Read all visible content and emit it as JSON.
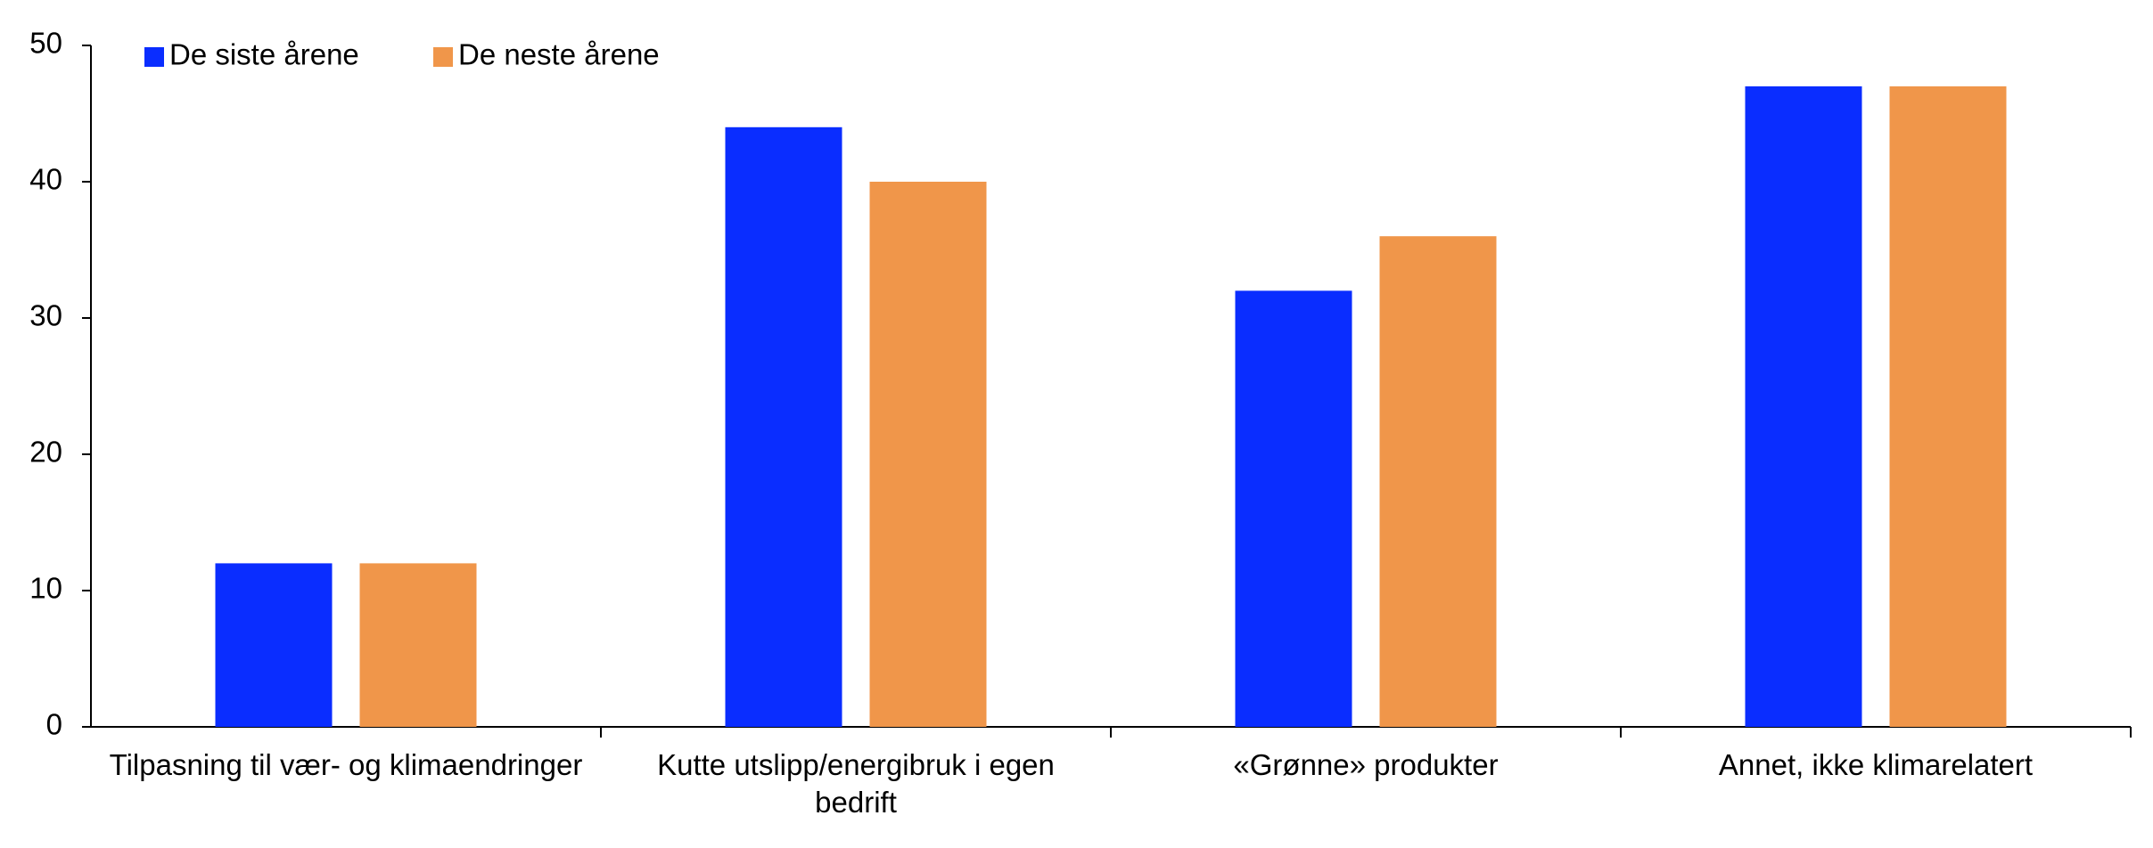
{
  "chart_data": {
    "type": "bar",
    "categories": [
      "Tilpasning til vær- og klimaendringer",
      "Kutte utslipp/energibruk i egen bedrift",
      "«Grønne» produkter",
      "Annet, ikke klimarelatert"
    ],
    "series": [
      {
        "name": "De siste årene",
        "color": "#0a2dff",
        "values": [
          12,
          44,
          32,
          47
        ]
      },
      {
        "name": "De neste årene",
        "color": "#f0964a",
        "values": [
          12,
          40,
          36,
          47
        ]
      }
    ],
    "ylim": [
      0,
      50
    ],
    "yticks": [
      0,
      10,
      20,
      30,
      40,
      50
    ],
    "grid": false,
    "legend": "top-left"
  }
}
